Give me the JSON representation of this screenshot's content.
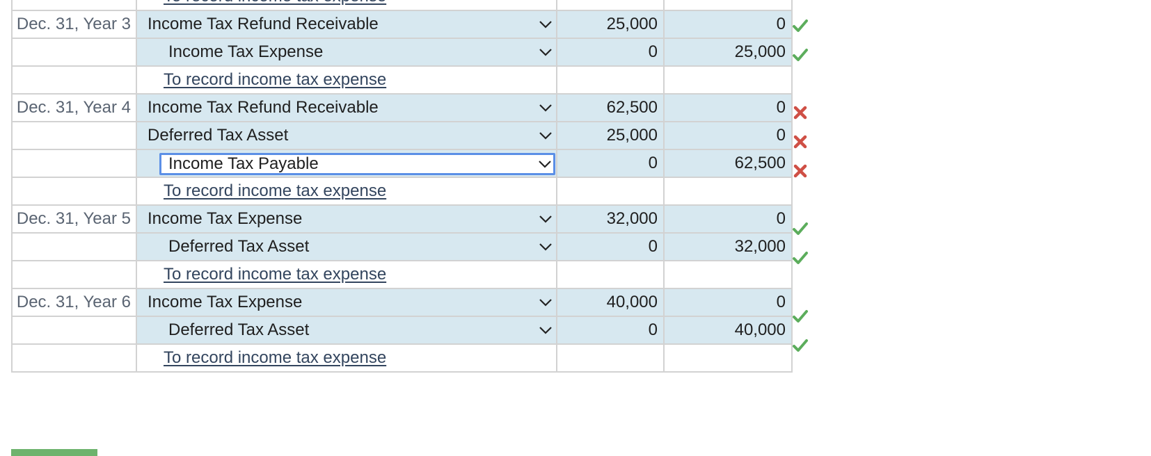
{
  "entries": [
    {
      "date": "",
      "rows": [],
      "memo": "To record income tax expense"
    },
    {
      "date": "Dec. 31, Year 3",
      "rows": [
        {
          "account": "Income Tax Refund Receivable",
          "debit": "25,000",
          "credit": "0",
          "status": "correct",
          "indent": false
        },
        {
          "account": "Income Tax Expense",
          "debit": "0",
          "credit": "25,000",
          "status": "correct",
          "indent": true
        }
      ],
      "memo": "To record income tax expense"
    },
    {
      "date": "Dec. 31, Year 4",
      "rows": [
        {
          "account": "Income Tax Refund Receivable",
          "debit": "62,500",
          "credit": "0",
          "status": "incorrect",
          "indent": false
        },
        {
          "account": "Deferred Tax Asset",
          "debit": "25,000",
          "credit": "0",
          "status": "incorrect",
          "indent": false
        },
        {
          "account": "Income Tax Payable",
          "debit": "0",
          "credit": "62,500",
          "status": "incorrect",
          "indent": true,
          "focused": true
        }
      ],
      "memo": "To record income tax expense"
    },
    {
      "date": "Dec. 31, Year 5",
      "rows": [
        {
          "account": "Income Tax Expense",
          "debit": "32,000",
          "credit": "0",
          "status": "correct",
          "indent": false
        },
        {
          "account": "Deferred Tax Asset",
          "debit": "0",
          "credit": "32,000",
          "status": "correct",
          "indent": true
        }
      ],
      "memo": "To record income tax expense"
    },
    {
      "date": "Dec. 31, Year 6",
      "rows": [
        {
          "account": "Income Tax Expense",
          "debit": "40,000",
          "credit": "0",
          "status": "correct",
          "indent": false
        },
        {
          "account": "Deferred Tax Asset",
          "debit": "0",
          "credit": "40,000",
          "status": "correct",
          "indent": true
        }
      ],
      "memo": "To record income tax expense"
    }
  ],
  "status_icons": {
    "correct": "check-icon",
    "incorrect": "cross-icon"
  },
  "colors": {
    "correct": "#5cad5c",
    "incorrect": "#cf4f45",
    "row_fill": "#d7e8f0",
    "focus_border": "#5b8fe6",
    "memo_link": "#33455e",
    "submit_button": "#6db36d"
  }
}
